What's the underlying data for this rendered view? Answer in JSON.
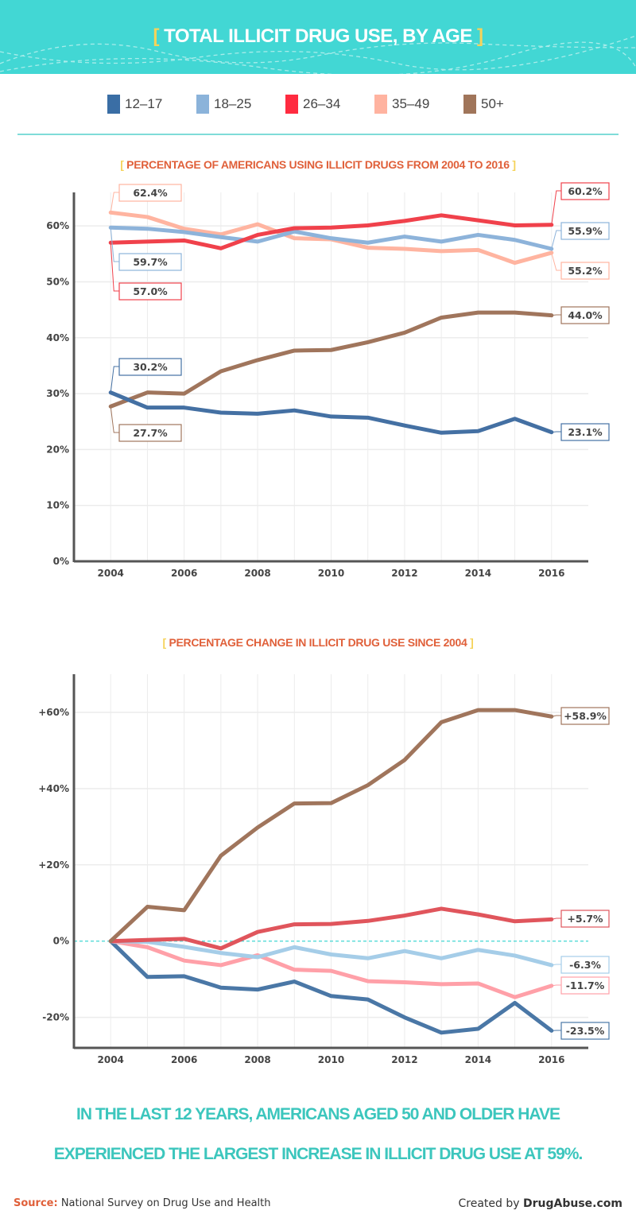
{
  "header": {
    "title": "TOTAL ILLICIT DRUG USE, BY AGE"
  },
  "legend": [
    {
      "label": "12-17",
      "color": "#3a6ea5"
    },
    {
      "label": "18-25",
      "color": "#8bb3da"
    },
    {
      "label": "26-34",
      "color": "#ff2b40"
    },
    {
      "label": "35-49",
      "color": "#ffb3a0"
    },
    {
      "label": "50+",
      "color": "#a0755a"
    }
  ],
  "accent_color": "#42d7d4",
  "chart_data": [
    {
      "type": "line",
      "title": "PERCENTAGE OF AMERICANS USING ILLICIT DRUGS FROM 2004 TO 2016",
      "x": [
        2004,
        2005,
        2006,
        2007,
        2008,
        2009,
        2010,
        2011,
        2012,
        2013,
        2014,
        2015,
        2016
      ],
      "xticks": [
        "2004",
        "2006",
        "2008",
        "2010",
        "2012",
        "2014",
        "2016"
      ],
      "yticks": [
        "0%",
        "10%",
        "20%",
        "30%",
        "40%",
        "50%",
        "60%"
      ],
      "xlim": [
        2003,
        2017
      ],
      "ylim": [
        0,
        66
      ],
      "grid": true,
      "series": [
        {
          "name": "12-17",
          "color": "#4470a3",
          "values": [
            30.2,
            27.5,
            27.5,
            26.6,
            26.4,
            27.0,
            25.9,
            25.7,
            24.3,
            23.0,
            23.3,
            25.5,
            23.1
          ],
          "start_label": "30.2%",
          "end_label": "23.1%"
        },
        {
          "name": "18-25",
          "color": "#8db3da",
          "values": [
            59.7,
            59.5,
            58.9,
            58.0,
            57.2,
            59.0,
            57.8,
            57.0,
            58.1,
            57.2,
            58.4,
            57.5,
            55.9
          ],
          "start_label": "59.7%",
          "end_label": "55.9%"
        },
        {
          "name": "26-34",
          "color": "#f0414b",
          "values": [
            57.0,
            57.2,
            57.4,
            56.0,
            58.4,
            59.6,
            59.7,
            60.1,
            60.9,
            61.9,
            61.0,
            60.1,
            60.2
          ],
          "start_label": "57.0%",
          "end_label": "60.2%"
        },
        {
          "name": "35-49",
          "color": "#ffb4a0",
          "values": [
            62.4,
            61.6,
            59.5,
            58.5,
            60.3,
            57.8,
            57.6,
            56.1,
            55.9,
            55.5,
            55.7,
            53.4,
            55.2
          ],
          "start_label": "62.4%",
          "end_label": "55.2%"
        },
        {
          "name": "50+",
          "color": "#a0755c",
          "values": [
            27.7,
            30.2,
            30.0,
            34.0,
            36.0,
            37.7,
            37.8,
            39.2,
            40.9,
            43.6,
            44.5,
            44.5,
            44.0
          ],
          "start_label": "27.7%",
          "end_label": "44.0%"
        }
      ]
    },
    {
      "type": "line",
      "title": "PERCENTAGE CHANGE IN ILLICIT DRUG USE SINCE 2004",
      "x": [
        2004,
        2005,
        2006,
        2007,
        2008,
        2009,
        2010,
        2011,
        2012,
        2013,
        2014,
        2015,
        2016
      ],
      "xticks": [
        "2004",
        "2006",
        "2008",
        "2010",
        "2012",
        "2014",
        "2016"
      ],
      "yticks": [
        "-20%",
        "0%",
        "+20%",
        "+40%",
        "+60%"
      ],
      "xlim": [
        2003,
        2017
      ],
      "ylim": [
        -28,
        70
      ],
      "grid": true,
      "zero_line_color": "#42d7d4",
      "series": [
        {
          "name": "12-17",
          "color": "#4a77a6",
          "values": [
            0,
            -9.4,
            -9.2,
            -12.2,
            -12.7,
            -10.6,
            -14.4,
            -15.3,
            -20.0,
            -24.0,
            -23.0,
            -16.2,
            -23.5
          ],
          "end_label": "-23.5%"
        },
        {
          "name": "18-25",
          "color": "#a5cde8",
          "values": [
            0,
            -0.2,
            -1.5,
            -3.1,
            -4.2,
            -1.6,
            -3.5,
            -4.5,
            -2.6,
            -4.5,
            -2.3,
            -3.8,
            -6.3
          ],
          "end_label": "-6.3%"
        },
        {
          "name": "26-34",
          "color": "#e0555c",
          "values": [
            0,
            0.3,
            0.6,
            -1.9,
            2.4,
            4.4,
            4.5,
            5.3,
            6.7,
            8.5,
            7.0,
            5.2,
            5.7
          ],
          "end_label": "+5.7%"
        },
        {
          "name": "35-49",
          "color": "#ffa0a8",
          "values": [
            0,
            -1.6,
            -5.1,
            -6.3,
            -3.7,
            -7.5,
            -7.8,
            -10.5,
            -10.8,
            -11.3,
            -11.1,
            -14.7,
            -11.7
          ],
          "end_label": "-11.7%"
        },
        {
          "name": "50+",
          "color": "#a0755c",
          "values": [
            0,
            9.0,
            8.1,
            22.4,
            29.8,
            36.1,
            36.2,
            40.9,
            47.5,
            57.4,
            60.6,
            60.6,
            58.9
          ],
          "end_label": "+58.9%"
        }
      ]
    }
  ],
  "conclusion": {
    "line1": "IN THE LAST 12 YEARS, AMERICANS AGED 50 AND OLDER HAVE",
    "line2": "EXPERIENCED THE LARGEST INCREASE IN ILLICIT DRUG USE AT 59%."
  },
  "footer": {
    "source_label": "Source:",
    "source_text": "National Survey on Drug Use and Health",
    "created_prefix": "Created by",
    "created_brand": "DrugAbuse.com"
  }
}
